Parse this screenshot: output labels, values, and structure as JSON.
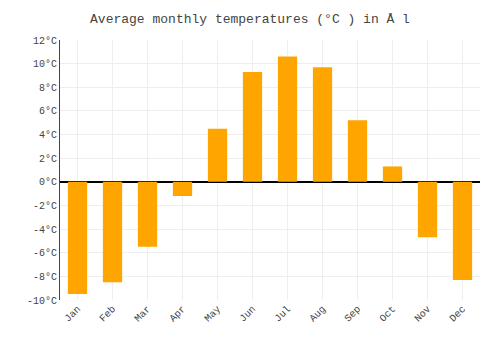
{
  "chart_data": {
    "type": "bar",
    "title": "Average monthly temperatures (°C ) in Å l",
    "categories": [
      "Jan",
      "Feb",
      "Mar",
      "Apr",
      "May",
      "Jun",
      "Jul",
      "Aug",
      "Sep",
      "Oct",
      "Nov",
      "Dec"
    ],
    "values": [
      -9.5,
      -8.5,
      -5.5,
      -1.2,
      4.5,
      9.3,
      10.6,
      9.7,
      5.2,
      1.3,
      -4.7,
      -8.3
    ],
    "color": "#FFA500",
    "ylim": [
      -10,
      12
    ],
    "yticks": [
      {
        "value": -10,
        "label": "-10°C"
      },
      {
        "value": -8,
        "label": "-8°C"
      },
      {
        "value": -6,
        "label": "-6°C"
      },
      {
        "value": -4,
        "label": "-4°C"
      },
      {
        "value": -2,
        "label": "-2°C"
      },
      {
        "value": 0,
        "label": "0°C"
      },
      {
        "value": 2,
        "label": "2°C"
      },
      {
        "value": 4,
        "label": "4°C"
      },
      {
        "value": 6,
        "label": "6°C"
      },
      {
        "value": 8,
        "label": "8°C"
      },
      {
        "value": 10,
        "label": "10°C"
      },
      {
        "value": 12,
        "label": "12°C"
      }
    ],
    "grid": true
  }
}
